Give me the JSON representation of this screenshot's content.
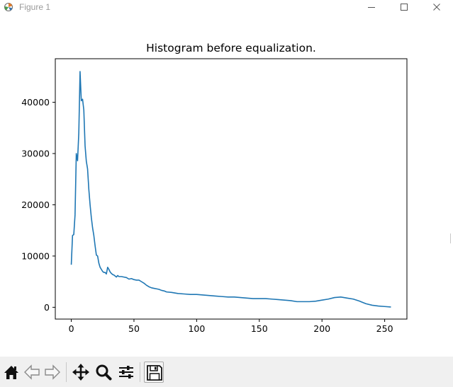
{
  "window": {
    "title": "Figure 1",
    "icons": {
      "app": "matplotlib-figure-icon",
      "minimize": "minimize-icon",
      "maximize": "maximize-icon",
      "close": "close-icon"
    }
  },
  "toolbar": {
    "buttons": [
      {
        "name": "home-button",
        "icon": "home-icon",
        "enabled": true
      },
      {
        "name": "back-button",
        "icon": "arrow-left-icon",
        "enabled": false
      },
      {
        "name": "forward-button",
        "icon": "arrow-right-icon",
        "enabled": false
      },
      {
        "name": "pan-button",
        "icon": "move-arrows-icon",
        "enabled": true
      },
      {
        "name": "zoom-button",
        "icon": "magnifier-icon",
        "enabled": true
      },
      {
        "name": "configure-subplots-button",
        "icon": "sliders-icon",
        "enabled": true
      },
      {
        "name": "save-button",
        "icon": "floppy-disk-icon",
        "enabled": true
      }
    ]
  },
  "chart_data": {
    "type": "line",
    "title": "Histogram before equalization.",
    "xlabel": "",
    "ylabel": "",
    "xlim": [
      -12.75,
      267.75
    ],
    "ylim": [
      -2300,
      48500
    ],
    "x_ticks": [
      0,
      50,
      100,
      150,
      200,
      250
    ],
    "y_ticks": [
      0,
      10000,
      20000,
      30000,
      40000
    ],
    "grid": false,
    "legend": false,
    "line_color": "#1f77b4",
    "series": [
      {
        "points": [
          [
            0,
            8300
          ],
          [
            1,
            14000
          ],
          [
            2,
            14200
          ],
          [
            3,
            18000
          ],
          [
            4,
            30000
          ],
          [
            5,
            28600
          ],
          [
            6,
            34000
          ],
          [
            7,
            46000
          ],
          [
            8,
            40300
          ],
          [
            9,
            40600
          ],
          [
            10,
            38500
          ],
          [
            11,
            31500
          ],
          [
            12,
            28500
          ],
          [
            13,
            27000
          ],
          [
            14,
            23000
          ],
          [
            15,
            20000
          ],
          [
            16,
            17500
          ],
          [
            17,
            15500
          ],
          [
            18,
            14000
          ],
          [
            19,
            12000
          ],
          [
            20,
            10200
          ],
          [
            21,
            10000
          ],
          [
            22,
            8600
          ],
          [
            23,
            7800
          ],
          [
            24,
            7400
          ],
          [
            25,
            7000
          ],
          [
            26,
            6800
          ],
          [
            27,
            6800
          ],
          [
            28,
            6500
          ],
          [
            29,
            7800
          ],
          [
            30,
            7400
          ],
          [
            31,
            6900
          ],
          [
            32,
            6600
          ],
          [
            33,
            6400
          ],
          [
            34,
            6300
          ],
          [
            35,
            6100
          ],
          [
            36,
            5900
          ],
          [
            37,
            6200
          ],
          [
            38,
            6000
          ],
          [
            39,
            6000
          ],
          [
            40,
            6000
          ],
          [
            42,
            5900
          ],
          [
            44,
            5800
          ],
          [
            46,
            5500
          ],
          [
            48,
            5600
          ],
          [
            50,
            5400
          ],
          [
            52,
            5300
          ],
          [
            54,
            5300
          ],
          [
            56,
            5000
          ],
          [
            58,
            4700
          ],
          [
            60,
            4300
          ],
          [
            62,
            4000
          ],
          [
            64,
            3800
          ],
          [
            66,
            3700
          ],
          [
            68,
            3600
          ],
          [
            70,
            3500
          ],
          [
            72,
            3300
          ],
          [
            74,
            3200
          ],
          [
            76,
            3000
          ],
          [
            80,
            2900
          ],
          [
            85,
            2700
          ],
          [
            90,
            2600
          ],
          [
            95,
            2500
          ],
          [
            100,
            2500
          ],
          [
            105,
            2400
          ],
          [
            110,
            2300
          ],
          [
            115,
            2200
          ],
          [
            120,
            2100
          ],
          [
            125,
            2000
          ],
          [
            130,
            2000
          ],
          [
            135,
            1900
          ],
          [
            140,
            1800
          ],
          [
            145,
            1700
          ],
          [
            150,
            1700
          ],
          [
            155,
            1700
          ],
          [
            160,
            1600
          ],
          [
            165,
            1500
          ],
          [
            170,
            1400
          ],
          [
            175,
            1300
          ],
          [
            180,
            1100
          ],
          [
            185,
            1100
          ],
          [
            190,
            1100
          ],
          [
            195,
            1200
          ],
          [
            200,
            1400
          ],
          [
            205,
            1600
          ],
          [
            210,
            1900
          ],
          [
            215,
            2000
          ],
          [
            220,
            1800
          ],
          [
            225,
            1600
          ],
          [
            230,
            1200
          ],
          [
            235,
            700
          ],
          [
            240,
            400
          ],
          [
            245,
            250
          ],
          [
            250,
            150
          ],
          [
            255,
            50
          ]
        ]
      }
    ]
  }
}
